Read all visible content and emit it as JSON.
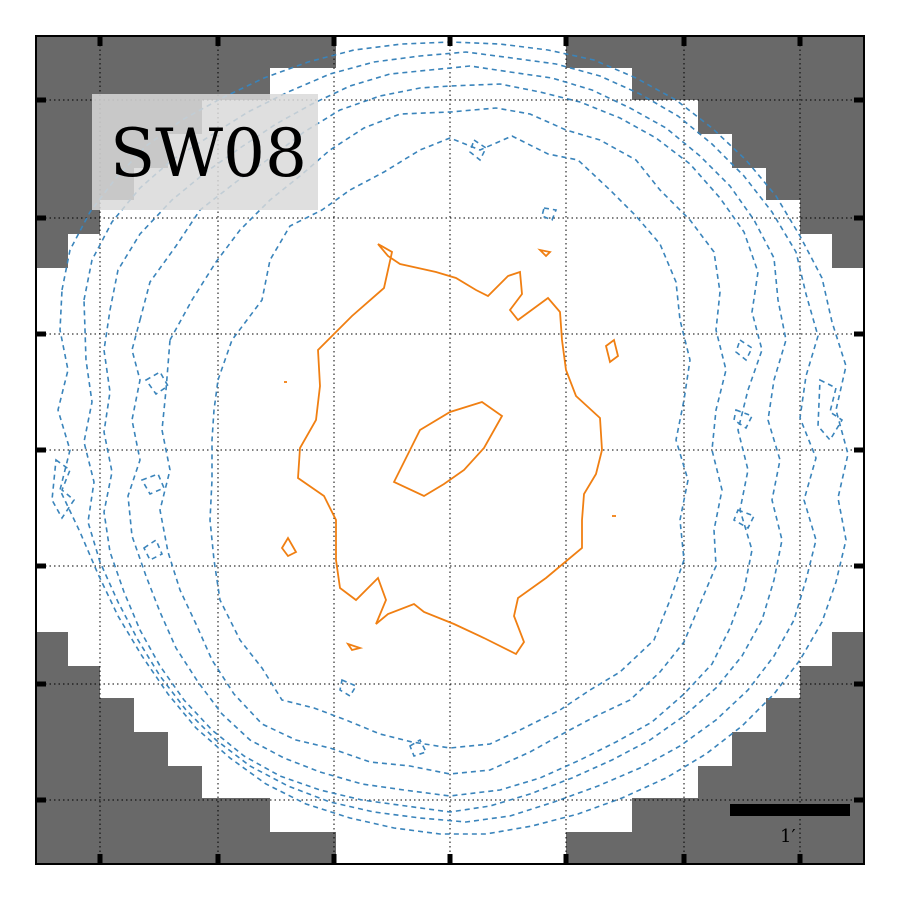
{
  "panel": {
    "label": "SW08",
    "scalebar_label": "1′"
  },
  "colors": {
    "mask": "#696969",
    "background": "#ffffff",
    "blue_contour": "#3a84bb",
    "orange_contour": "#f07f12",
    "label_box": "#d9d9d9",
    "frame": "#000000"
  },
  "grid": {
    "style": "dotted",
    "divisions": 7
  },
  "contours": {
    "blue": {
      "style": "dashed",
      "levels": 6
    },
    "orange": {
      "style": "solid",
      "levels": 2
    }
  }
}
